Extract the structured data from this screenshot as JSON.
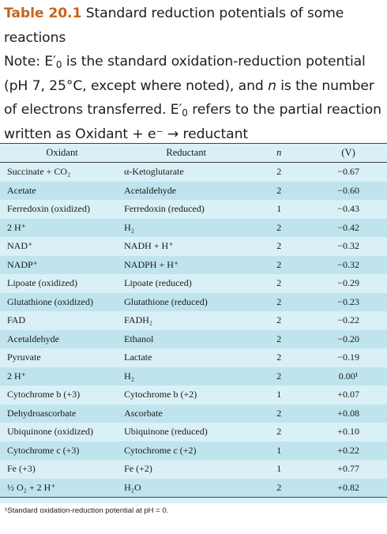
{
  "caption": {
    "table_label": "Table 20.1",
    "title": "Standard reduction potentials of some reactions",
    "note_prefix": "Note: E′",
    "note_sub": "0",
    "note_body": " is the standard oxidation-reduction potential (pH 7, 25°C, except where noted), and ",
    "note_n": "n",
    "note_body2": " is the number of electrons transferred. E′",
    "note_sub2": "0",
    "note_body3": " refers to the partial reaction written as Oxidant + e⁻ → reductant"
  },
  "table": {
    "headers": {
      "oxidant": "Oxidant",
      "reductant": "Reductant",
      "n": "n",
      "v": "(V)"
    },
    "rows": [
      {
        "oxidant": "Succinate + CO₂",
        "reductant": "α-Ketoglutarate",
        "n": "2",
        "v": "−0.67"
      },
      {
        "oxidant": "Acetate",
        "reductant": "Acetaldehyde",
        "n": "2",
        "v": "−0.60"
      },
      {
        "oxidant": "Ferredoxin (oxidized)",
        "reductant": "Ferredoxin (reduced)",
        "n": "1",
        "v": "−0.43"
      },
      {
        "oxidant": "2 H⁺",
        "reductant": "H₂",
        "n": "2",
        "v": "−0.42"
      },
      {
        "oxidant": "NAD⁺",
        "reductant": "NADH + H⁺",
        "n": "2",
        "v": "−0.32"
      },
      {
        "oxidant": "NADP⁺",
        "reductant": "NADPH + H⁺",
        "n": "2",
        "v": "−0.32"
      },
      {
        "oxidant": "Lipoate (oxidized)",
        "reductant": "Lipoate (reduced)",
        "n": "2",
        "v": "−0.29"
      },
      {
        "oxidant": "Glutathione (oxidized)",
        "reductant": "Glutathione (reduced)",
        "n": "2",
        "v": "−0.23"
      },
      {
        "oxidant": "FAD",
        "reductant": "FADH₂",
        "n": "2",
        "v": "−0.22"
      },
      {
        "oxidant": "Acetaldehyde",
        "reductant": "Ethanol",
        "n": "2",
        "v": "−0.20"
      },
      {
        "oxidant": "Pyruvate",
        "reductant": "Lactate",
        "n": "2",
        "v": "−0.19"
      },
      {
        "oxidant": "2 H⁺",
        "reductant": "H₂",
        "n": "2",
        "v": "0.00¹"
      },
      {
        "oxidant": "Cytochrome b (+3)",
        "reductant": "Cytochrome b (+2)",
        "n": "1",
        "v": "+0.07"
      },
      {
        "oxidant": "Dehydroascorbate",
        "reductant": "Ascorbate",
        "n": "2",
        "v": "+0.08"
      },
      {
        "oxidant": "Ubiquinone (oxidized)",
        "reductant": "Ubiquinone (reduced)",
        "n": "2",
        "v": "+0.10"
      },
      {
        "oxidant": "Cytochrome c (+3)",
        "reductant": "Cytochrome c (+2)",
        "n": "1",
        "v": "+0.22"
      },
      {
        "oxidant": "Fe (+3)",
        "reductant": "Fe (+2)",
        "n": "1",
        "v": "+0.77"
      },
      {
        "oxidant": "½ O₂ + 2 H⁺",
        "reductant": "H₂O",
        "n": "2",
        "v": "+0.82"
      }
    ]
  },
  "footnote": "¹Standard oxidation-reduction potential at pH = 0.",
  "colors": {
    "table_label": "#c8641e",
    "table_bg": "#d9f0f6",
    "stripe_bg": "#bfe4ee"
  }
}
